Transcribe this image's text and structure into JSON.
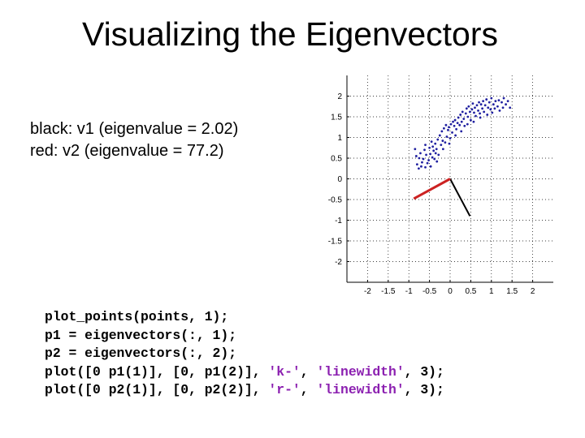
{
  "slide": {
    "title": "Visualizing the Eigenvectors",
    "notes": [
      "black: v1 (eigenvalue = 2.02)",
      "red: v2 (eigenvalue = 77.2)"
    ],
    "code": [
      [
        {
          "text": "plot_points(points, 1);"
        }
      ],
      [
        {
          "text": "p1 = eigenvectors(:, 1);"
        }
      ],
      [
        {
          "text": "p2 = eigenvectors(:, 2);"
        }
      ],
      [
        {
          "text": "plot([0 p1(1)], [0, p1(2)], "
        },
        {
          "text": "'k-'",
          "str": true
        },
        {
          "text": ", "
        },
        {
          "text": "'linewidth'",
          "str": true
        },
        {
          "text": ", 3);"
        }
      ],
      [
        {
          "text": "plot([0 p2(1)], [0, p2(2)], "
        },
        {
          "text": "'r-'",
          "str": true
        },
        {
          "text": ", "
        },
        {
          "text": "'linewidth'",
          "str": true
        },
        {
          "text": ", 3);"
        }
      ]
    ]
  },
  "chart_data": {
    "type": "scatter",
    "title": "",
    "xlabel": "",
    "ylabel": "",
    "xlim": [
      -2.5,
      2.5
    ],
    "ylim": [
      -2.5,
      2.5
    ],
    "grid": true,
    "x_ticks": [
      -2,
      -1.5,
      -1,
      -0.5,
      0,
      0.5,
      1,
      1.5,
      2
    ],
    "x_tick_labels": [
      "-2",
      "-1.5",
      "-1",
      "-0.5",
      "0",
      "0.5",
      "1",
      "1.5",
      "2"
    ],
    "y_ticks": [
      2,
      1.5,
      1,
      0.5,
      0,
      -0.5,
      -1,
      -1.5,
      -2
    ],
    "y_tick_labels": [
      "2",
      "1.5",
      "1",
      "0.5",
      "0",
      "-0.5",
      "-1",
      "-1.5",
      "-2"
    ],
    "point_color": "#2020a0",
    "points": [
      [
        -0.85,
        0.72
      ],
      [
        -0.82,
        0.55
      ],
      [
        -0.8,
        0.35
      ],
      [
        -0.76,
        0.25
      ],
      [
        -0.75,
        0.5
      ],
      [
        -0.72,
        0.62
      ],
      [
        -0.7,
        0.3
      ],
      [
        -0.65,
        0.48
      ],
      [
        -0.62,
        0.7
      ],
      [
        -0.6,
        0.82
      ],
      [
        -0.58,
        0.58
      ],
      [
        -0.55,
        0.38
      ],
      [
        -0.52,
        0.45
      ],
      [
        -0.5,
        0.75
      ],
      [
        -0.48,
        0.6
      ],
      [
        -0.45,
        0.9
      ],
      [
        -0.43,
        0.52
      ],
      [
        -0.42,
        0.78
      ],
      [
        -0.4,
        0.68
      ],
      [
        -0.38,
        0.48
      ],
      [
        -0.36,
        0.85
      ],
      [
        -0.35,
        0.62
      ],
      [
        -0.33,
        0.72
      ],
      [
        -0.3,
        0.95
      ],
      [
        -0.28,
        0.58
      ],
      [
        -0.25,
        1.05
      ],
      [
        -0.22,
        0.82
      ],
      [
        -0.2,
        1.15
      ],
      [
        -0.18,
        0.92
      ],
      [
        -0.15,
        1.22
      ],
      [
        -0.12,
        0.88
      ],
      [
        -0.1,
        1.3
      ],
      [
        -0.08,
        1.02
      ],
      [
        -0.05,
        1.18
      ],
      [
        -0.03,
        1.25
      ],
      [
        0.0,
        0.98
      ],
      [
        0.02,
        1.32
      ],
      [
        0.05,
        1.12
      ],
      [
        0.07,
        1.38
      ],
      [
        0.1,
        1.28
      ],
      [
        0.12,
        1.42
      ],
      [
        0.15,
        1.2
      ],
      [
        0.18,
        1.35
      ],
      [
        0.2,
        1.48
      ],
      [
        0.23,
        1.3
      ],
      [
        0.25,
        1.55
      ],
      [
        0.28,
        1.38
      ],
      [
        0.3,
        1.62
      ],
      [
        0.33,
        1.45
      ],
      [
        0.35,
        1.28
      ],
      [
        0.38,
        1.58
      ],
      [
        0.4,
        1.7
      ],
      [
        0.43,
        1.5
      ],
      [
        0.45,
        1.75
      ],
      [
        0.48,
        1.62
      ],
      [
        0.5,
        1.42
      ],
      [
        0.53,
        1.68
      ],
      [
        0.55,
        1.82
      ],
      [
        0.58,
        1.6
      ],
      [
        0.6,
        1.72
      ],
      [
        0.62,
        1.52
      ],
      [
        0.65,
        1.78
      ],
      [
        0.68,
        1.65
      ],
      [
        0.7,
        1.85
      ],
      [
        0.72,
        1.58
      ],
      [
        0.75,
        1.8
      ],
      [
        0.78,
        1.7
      ],
      [
        0.8,
        1.88
      ],
      [
        0.82,
        1.62
      ],
      [
        0.85,
        1.78
      ],
      [
        0.88,
        1.92
      ],
      [
        0.9,
        1.55
      ],
      [
        0.92,
        1.72
      ],
      [
        0.95,
        1.85
      ],
      [
        0.98,
        1.68
      ],
      [
        1.0,
        1.95
      ],
      [
        1.02,
        1.6
      ],
      [
        1.05,
        1.8
      ],
      [
        1.08,
        1.7
      ],
      [
        1.1,
        1.88
      ],
      [
        1.15,
        1.75
      ],
      [
        1.18,
        1.9
      ],
      [
        1.2,
        1.65
      ],
      [
        1.25,
        1.85
      ],
      [
        1.28,
        1.72
      ],
      [
        1.3,
        1.95
      ],
      [
        1.35,
        1.8
      ],
      [
        1.4,
        1.88
      ],
      [
        1.45,
        1.72
      ],
      [
        -0.68,
        0.4
      ],
      [
        -0.6,
        0.28
      ],
      [
        -0.47,
        0.3
      ],
      [
        -0.32,
        0.42
      ],
      [
        -0.17,
        0.72
      ],
      [
        -0.02,
        0.85
      ],
      [
        0.13,
        1.05
      ],
      [
        0.27,
        1.15
      ],
      [
        0.42,
        1.32
      ],
      [
        0.57,
        1.38
      ],
      [
        0.73,
        1.48
      ]
    ],
    "lines": [
      {
        "name": "",
        "color": "#000000",
        "width": 2,
        "x": [
          0,
          0.48
        ],
        "y": [
          0,
          -0.9
        ]
      },
      {
        "name": "",
        "color": "#cc2222",
        "width": 3,
        "x": [
          0,
          -0.88
        ],
        "y": [
          0,
          -0.48
        ]
      }
    ]
  }
}
